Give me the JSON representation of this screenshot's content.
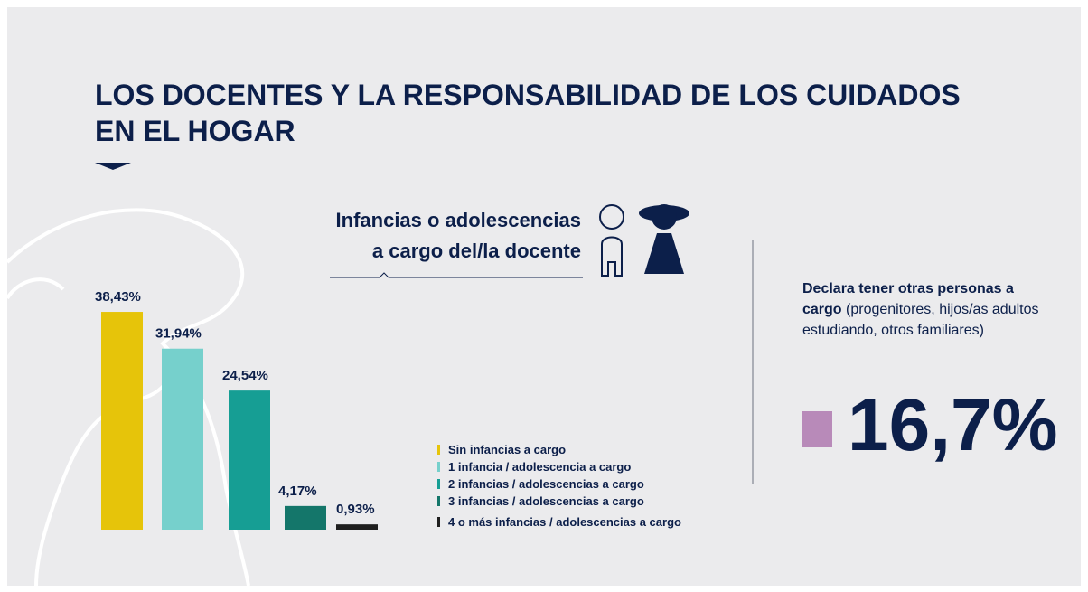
{
  "header": {
    "title_lines": [
      "LOS DOCENTES Y LA RESPONSABILIDAD DE LOS CUIDADOS",
      "EN EL HOGAR"
    ]
  },
  "chart_data": {
    "type": "bar",
    "subtitle_lines": [
      "Infancias o adolescencias",
      "a cargo del/la docente"
    ],
    "categories": [
      "Sin infancias a cargo",
      "1 infancia / adolescencia a cargo",
      "2 infancias / adolescencias a cargo",
      "3 infancias / adolescencias a cargo",
      "4 o más infancias / adolescencias a cargo"
    ],
    "values": [
      38.43,
      31.94,
      24.54,
      4.17,
      0.93
    ],
    "value_labels": [
      "38,43%",
      "31,94%",
      "24,54%",
      "4,17%",
      "0,93%"
    ],
    "colors": [
      "#e6c40a",
      "#76d0cc",
      "#169e94",
      "#14766a",
      "#1f1f1f"
    ]
  },
  "side": {
    "bold_text": "Declara tener otras personas a cargo",
    "text": "(progenitores, hijos/as adultos estudiando, otros familiares)",
    "stat": {
      "value": 16.7,
      "label": "16,7%"
    },
    "color": "#b88ab9"
  }
}
